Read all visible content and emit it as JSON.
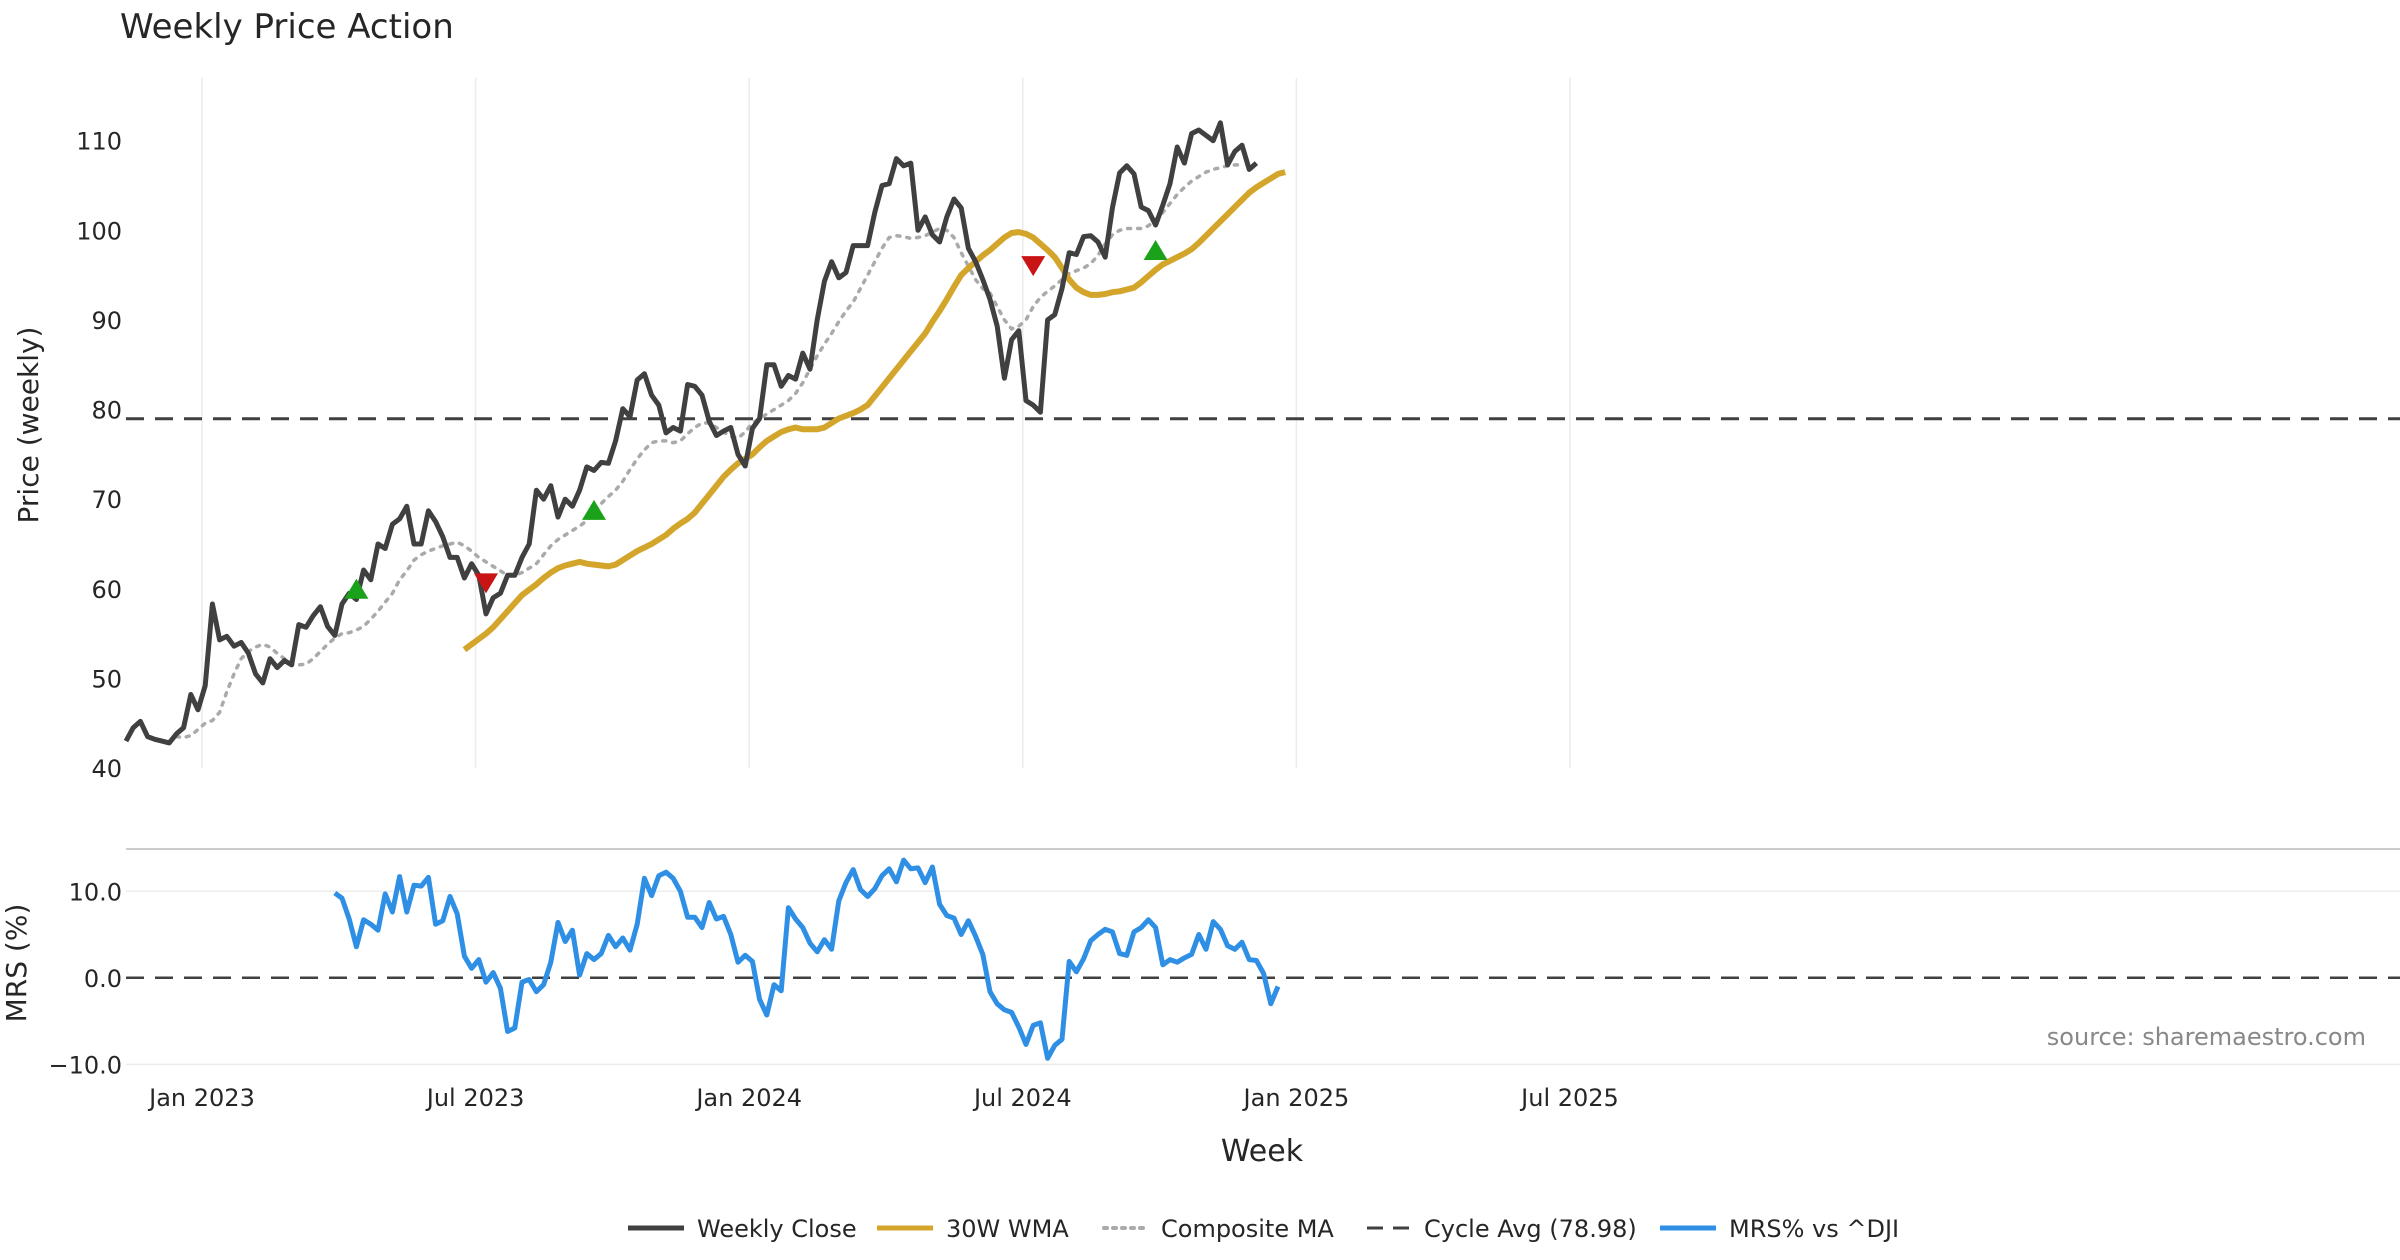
{
  "chart_data": {
    "type": "line",
    "title": "Weekly Price Action",
    "xlabel": "Week",
    "source_note": "source: sharemaestro.com",
    "x_ticks": [
      "Jan 2023",
      "Jul 2023",
      "Jan 2024",
      "Jul 2024",
      "Jan 2025",
      "Jul 2025"
    ],
    "price_panel": {
      "ylabel": "Price (weekly)",
      "ylim": [
        40,
        117
      ],
      "y_ticks": [
        "40",
        "50",
        "60",
        "70",
        "80",
        "90",
        "100",
        "110"
      ],
      "weekly_close": [
        43,
        44.5,
        45.2,
        43.5,
        43.2,
        43,
        42.8,
        43.8,
        44.5,
        48.2,
        46.5,
        49.2,
        58.3,
        54.3,
        54.7,
        53.6,
        54,
        52.8,
        50.5,
        49.5,
        52.2,
        51.2,
        52,
        51.5,
        56,
        55.7,
        57,
        58,
        55.8,
        54.8,
        58.3,
        59.5,
        58.8,
        62.1,
        61,
        65,
        64.5,
        67.2,
        67.8,
        69.2,
        65,
        65,
        68.7,
        67.5,
        65.8,
        63.5,
        63.5,
        61.2,
        62.8,
        61.5,
        57.2,
        59,
        59.5,
        61.5,
        61.5,
        63.5,
        65,
        71,
        70,
        71.5,
        68,
        70,
        69.2,
        71,
        73.6,
        73.2,
        74.1,
        74,
        76.5,
        80.1,
        79.2,
        83.3,
        84,
        81.6,
        80.5,
        77.4,
        78,
        77.6,
        82.8,
        82.6,
        81.6,
        78.7,
        77.1,
        77.6,
        78,
        75,
        73.7,
        77.9,
        79,
        85,
        85,
        82.6,
        83.8,
        83.4,
        86.3,
        84.5,
        90,
        94.3,
        96.5,
        94.7,
        95.3,
        98.3,
        98.3,
        98.3,
        102,
        105,
        105.2,
        108,
        107.2,
        107.5,
        100,
        101.5,
        99.5,
        98.7,
        101.5,
        103.5,
        102.5,
        98,
        96.5,
        94.5,
        92.3,
        89.3,
        83.5,
        87.8,
        88.8,
        81,
        80.5,
        79.7,
        90,
        90.6,
        93.5,
        97.5,
        97.3,
        99.3,
        99.4,
        98.7,
        97,
        102.5,
        106.4,
        107.2,
        106.3,
        102.6,
        102.2,
        100.6,
        102.8,
        105.2,
        109.3,
        107.5,
        110.8,
        111.2,
        110.6,
        110,
        112,
        107.3,
        108.8,
        109.5,
        106.8,
        107.5
      ],
      "wma_30w_start_week": 47,
      "wma_30w": [
        53.2,
        53.8,
        54.4,
        55,
        55.7,
        56.6,
        57.5,
        58.4,
        59.3,
        59.9,
        60.5,
        61.2,
        61.8,
        62.3,
        62.6,
        62.8,
        63,
        62.8,
        62.7,
        62.6,
        62.5,
        62.7,
        63.2,
        63.7,
        64.2,
        64.6,
        65,
        65.5,
        66,
        66.7,
        67.3,
        67.8,
        68.5,
        69.5,
        70.5,
        71.5,
        72.5,
        73.3,
        74,
        74.5,
        75,
        75.8,
        76.5,
        77,
        77.5,
        77.8,
        78,
        77.8,
        77.8,
        77.8,
        78,
        78.5,
        79,
        79.3,
        79.6,
        80,
        80.5,
        81.5,
        82.5,
        83.5,
        84.5,
        85.5,
        86.5,
        87.5,
        88.5,
        89.8,
        91,
        92.3,
        93.7,
        95,
        95.8,
        96.5,
        97.2,
        97.8,
        98.5,
        99.2,
        99.7,
        99.8,
        99.6,
        99.2,
        98.5,
        97.8,
        97,
        95.8,
        94.5,
        93.6,
        93.1,
        92.8,
        92.8,
        92.9,
        93.1,
        93.2,
        93.4,
        93.6,
        94.2,
        94.9,
        95.6,
        96.2,
        96.6,
        97,
        97.4,
        97.9,
        98.6,
        99.4,
        100.2,
        101,
        101.8,
        102.6,
        103.4,
        104.2,
        104.8,
        105.3,
        105.8,
        106.3,
        106.5
      ],
      "composite_ma_start_week": 7,
      "composite_ma": [
        43.5,
        43.4,
        43.6,
        44.3,
        45,
        45.3,
        46.2,
        48.5,
        50.5,
        52.2,
        53,
        53.5,
        53.8,
        53.5,
        52.8,
        52.2,
        51.6,
        51.5,
        51.6,
        52.2,
        53,
        53.8,
        54.5,
        55,
        55.1,
        55.4,
        55.8,
        56.6,
        57.5,
        58.5,
        59.5,
        61,
        62,
        63.2,
        63.8,
        64.2,
        64.5,
        64.8,
        65,
        65.2,
        64.8,
        64.2,
        63.5,
        63,
        62.5,
        62,
        61.5,
        61.5,
        61.8,
        62.3,
        62.8,
        63.8,
        64.8,
        65.5,
        66,
        66.5,
        67,
        67.6,
        68.5,
        69.5,
        70.3,
        71,
        72,
        73.3,
        74.5,
        75.5,
        76.3,
        76.5,
        76.5,
        76.3,
        76.5,
        77.3,
        78,
        78.5,
        78.5,
        78,
        77.5,
        77,
        76.8,
        77.5,
        78.5,
        79,
        79.5,
        80,
        80.5,
        81,
        81.8,
        83,
        84.5,
        86,
        87.3,
        88.5,
        89.8,
        91,
        92,
        93.5,
        95,
        96.5,
        98,
        99.2,
        99.4,
        99.3,
        99.1,
        99.2,
        99.4,
        99.8,
        100.2,
        100,
        99.2,
        97.5,
        96,
        94.5,
        93.5,
        93,
        91.5,
        90,
        89,
        89.3,
        90,
        91.5,
        92.5,
        93.2,
        93.8,
        94.5,
        95.2,
        95.5,
        95.8,
        96.3,
        97.2,
        98.5,
        99.5,
        100,
        100.2,
        100.2,
        100.2,
        100.5,
        101.2,
        102,
        103,
        104,
        104.8,
        105.5,
        106,
        106.5,
        106.8,
        107,
        107.2,
        107.3,
        107.3
      ],
      "cycle_avg": 78.98,
      "buy_signals": [
        {
          "week": 32,
          "value": 60
        },
        {
          "week": 65,
          "value": 68.8
        },
        {
          "week": 143,
          "value": 97.8
        }
      ],
      "sell_signals": [
        {
          "week": 50,
          "value": 60.6
        },
        {
          "week": 126,
          "value": 96
        }
      ]
    },
    "mrs_panel": {
      "ylabel": "MRS (%)",
      "ylim": [
        -11,
        15
      ],
      "y_ticks": [
        "−10.0",
        "0.0",
        "10.0"
      ],
      "start_week": 29,
      "values": [
        9.8,
        9.2,
        6.8,
        3.6,
        6.7,
        6.2,
        5.5,
        9.7,
        7.6,
        11.7,
        7.6,
        10.7,
        10.6,
        11.6,
        6.2,
        6.6,
        9.4,
        7.4,
        2.5,
        1.1,
        2.1,
        -0.5,
        0.6,
        -1.2,
        -6.2,
        -5.8,
        -0.5,
        -0.2,
        -1.6,
        -0.8,
        1.8,
        6.4,
        4.2,
        5.5,
        0.3,
        2.8,
        2.1,
        2.8,
        4.9,
        3.6,
        4.6,
        3.2,
        6.2,
        11.5,
        9.5,
        11.8,
        12.2,
        11.5,
        10,
        7,
        7,
        5.8,
        8.7,
        6.8,
        7.1,
        5,
        1.8,
        2.6,
        1.9,
        -2.5,
        -4.3,
        -0.8,
        -1.5,
        8.1,
        6.8,
        5.8,
        4,
        3,
        4.4,
        3.3,
        8.9,
        11,
        12.5,
        10.2,
        9.4,
        10.3,
        11.8,
        12.6,
        11.1,
        13.6,
        12.6,
        12.7,
        11,
        12.8,
        8.5,
        7.2,
        6.9,
        5,
        6.6,
        4.8,
        2.7,
        -1.6,
        -3,
        -3.7,
        -4,
        -5.7,
        -7.7,
        -5.5,
        -5.2,
        -9.3,
        -7.8,
        -7.1,
        1.9,
        0.7,
        2.2,
        4.3,
        5,
        5.6,
        5.3,
        2.8,
        2.6,
        5.3,
        5.8,
        6.7,
        5.8,
        1.5,
        2.1,
        1.8,
        2.3,
        2.7,
        5,
        3.3,
        6.5,
        5.6,
        3.7,
        3.3,
        4.1,
        2.1,
        2,
        0.5,
        -3,
        -1
      ]
    },
    "legend": {
      "weekly_close": "Weekly Close",
      "wma": "30W WMA",
      "composite": "Composite MA",
      "cycle_avg": "Cycle Avg (78.98)",
      "mrs": "MRS% vs ^DJI"
    },
    "colors": {
      "weekly_close": "#404040",
      "wma": "#d4a52b",
      "composite": "#aaaaaa",
      "cycle_avg": "#404040",
      "mrs": "#2e8fe5",
      "buy": "#1aa31a",
      "sell": "#c81414"
    }
  }
}
